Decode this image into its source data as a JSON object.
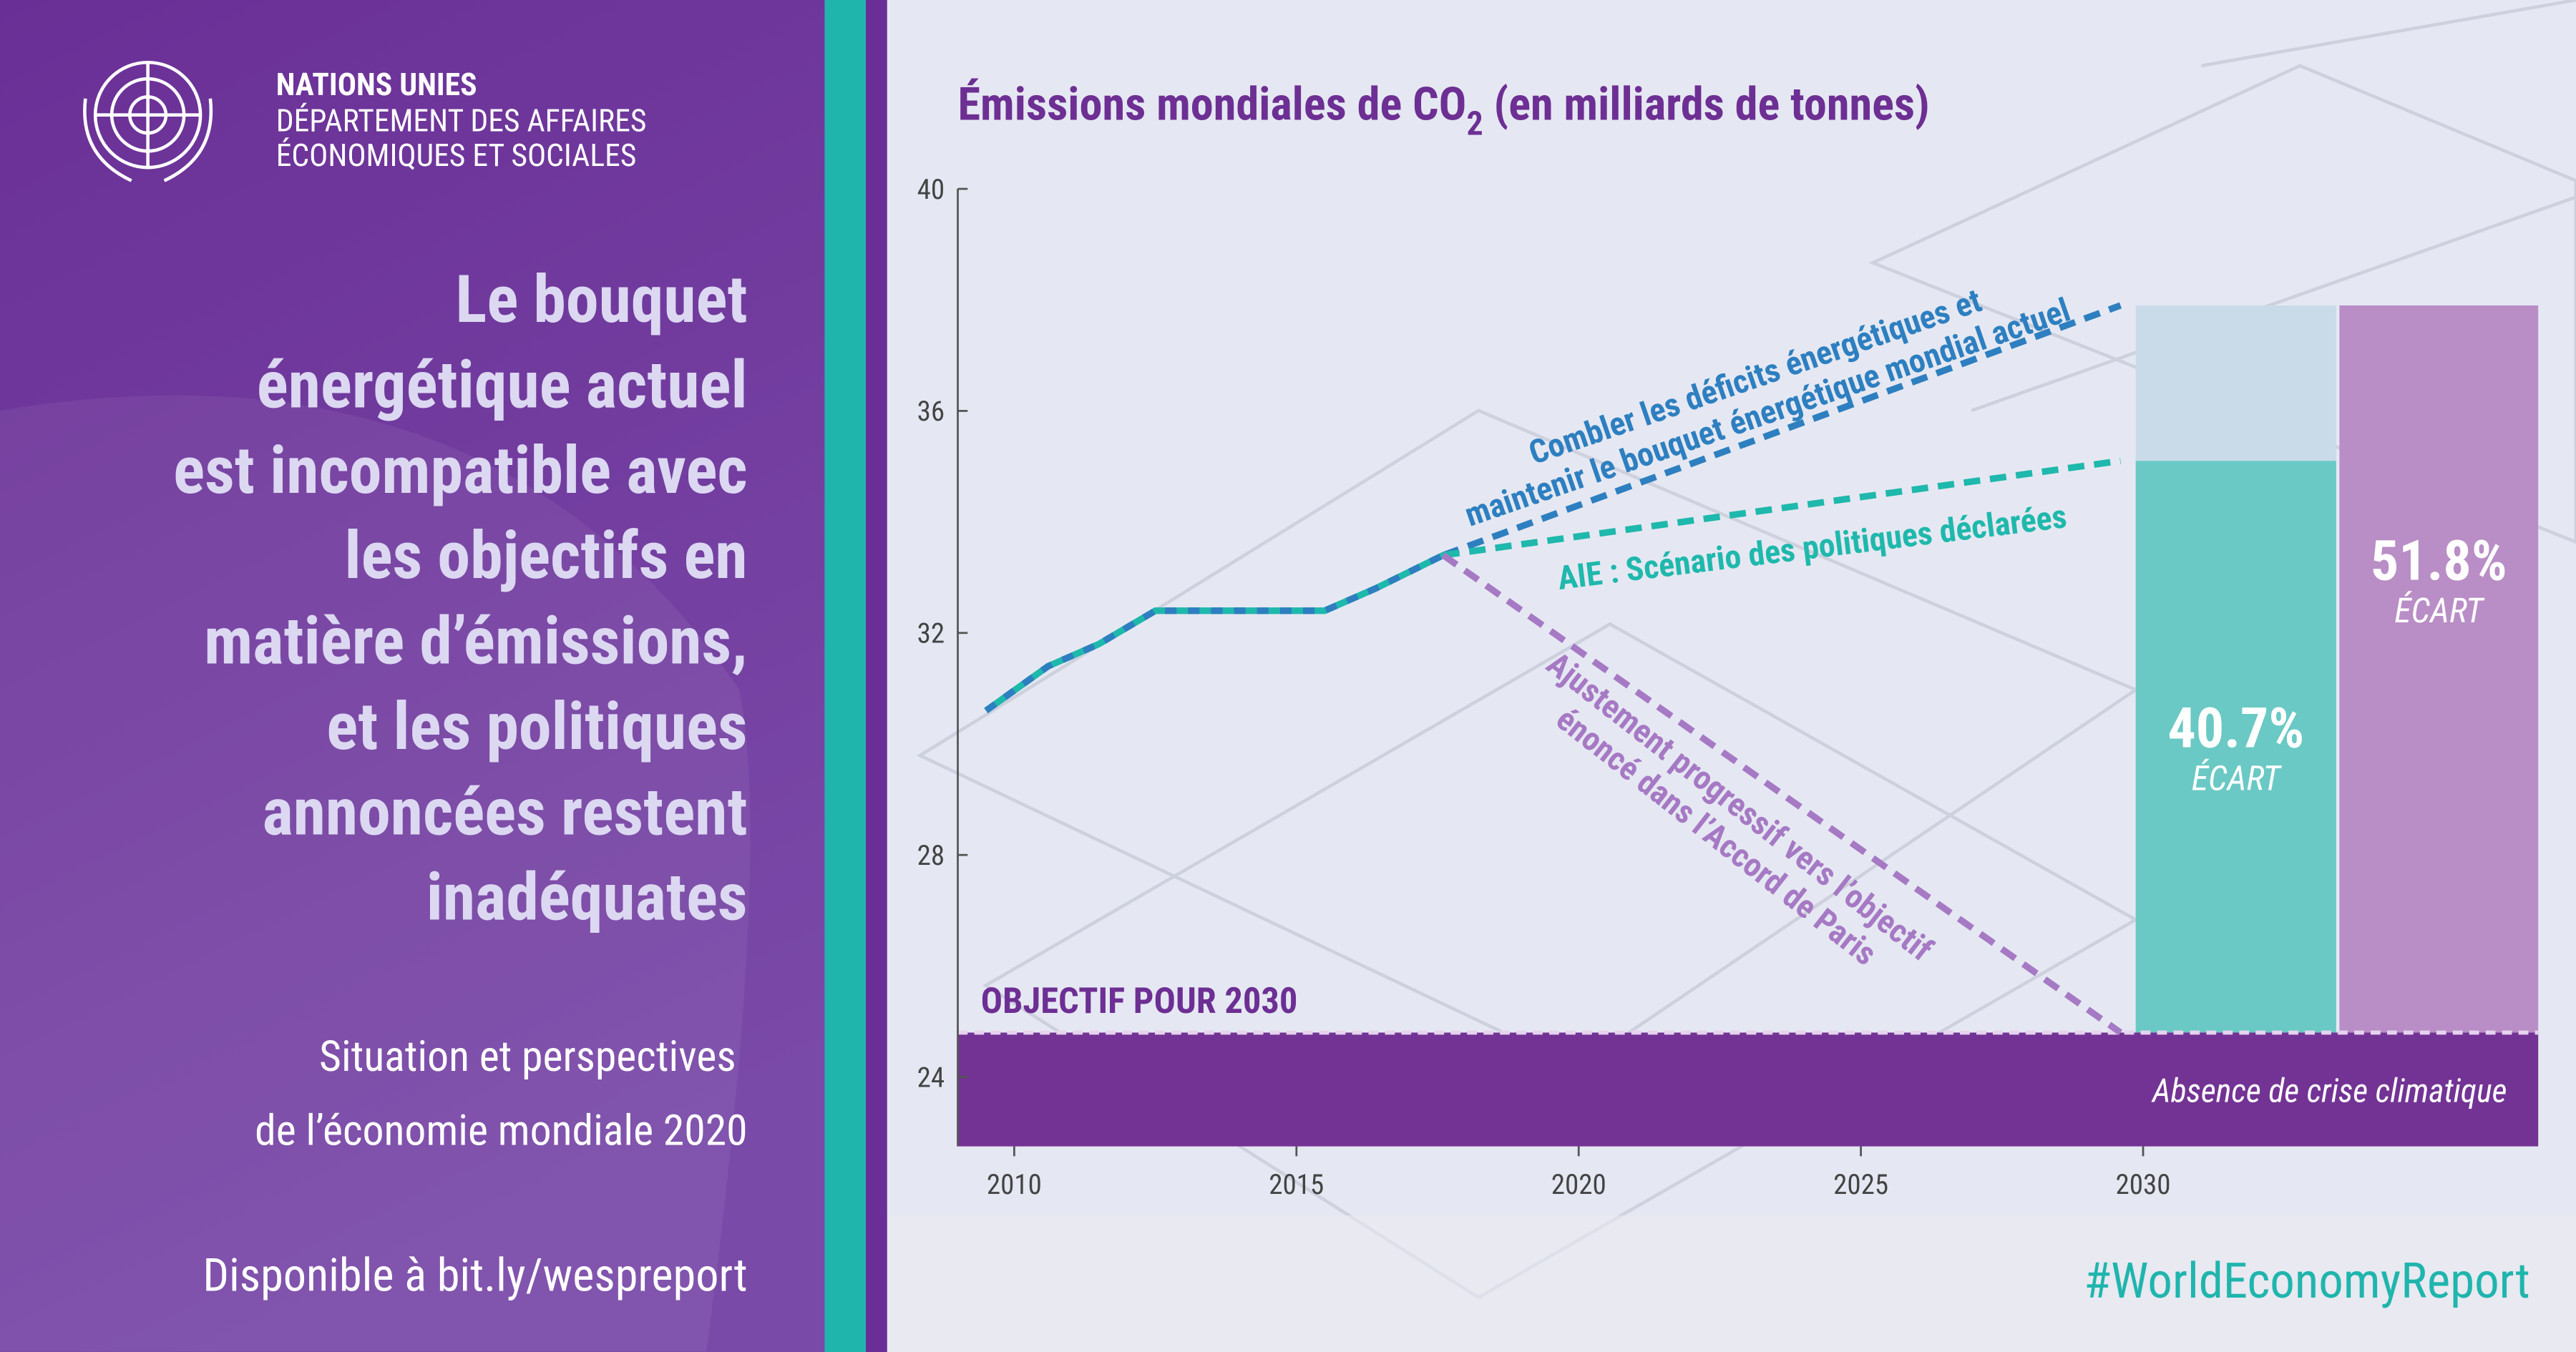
{
  "header": {
    "org": "NATIONS UNIES",
    "dept_lines": [
      "DÉPARTEMENT DES AFFAIRES",
      "ÉCONOMIQUES ET SOCIALES"
    ]
  },
  "headline_lines": [
    "Le bouquet",
    "énergétique actuel",
    "est incompatible avec",
    "les objectifs en",
    "matière d’émissions,",
    "et les politiques",
    "annoncées restent",
    "inadéquates"
  ],
  "report_lines": [
    "Situation et perspectives",
    "de l’économie mondiale 2020"
  ],
  "link": "Disponible à bit.ly/wespreport",
  "hashtag": "#WorldEconomyReport",
  "chart_data": {
    "type": "line",
    "title_parts": [
      "Émissions mondiales de CO",
      "2",
      " (en milliards de tonnes)"
    ],
    "xlim": [
      2009,
      2037
    ],
    "xticks": [
      2010,
      2015,
      2020,
      2025,
      2030
    ],
    "ylim": [
      22.75,
      40
    ],
    "yticks": [
      40,
      36,
      32,
      28,
      24
    ],
    "series": [
      {
        "color": "#2aa7b3",
        "x": [
          2009.5,
          2010.6,
          2011.5,
          2012.5,
          2015.5,
          2016.4,
          2017.6
        ],
        "values": [
          30.6,
          31.4,
          31.8,
          32.4,
          32.4,
          32.8,
          33.4
        ]
      },
      {
        "color": "#2d7fc0",
        "label_lines": [
          "Combler les déficits énergétiques et",
          "maintenir le bouquet énergétique mondial actuel"
        ],
        "x": [
          2017.6,
          2029.6
        ],
        "values": [
          33.4,
          37.9
        ]
      },
      {
        "color": "#1fb8ac",
        "label_lines": [
          "AIE : Scénario des politiques déclarées"
        ],
        "x": [
          2017.6,
          2029.6
        ],
        "values": [
          33.4,
          35.1
        ]
      },
      {
        "color": "#a679c4",
        "label_lines": [
          "Ajustement progressif vers l’objectif",
          "énoncé dans l’Accord de Paris"
        ],
        "x": [
          2017.6,
          2029.6
        ],
        "values": [
          33.4,
          24.8
        ]
      }
    ],
    "target": {
      "value": 24.8,
      "label": "OBJECTIF POUR 2030"
    },
    "band_label": "Absence de crise climatique",
    "gaps": {
      "tops": [
        35.1,
        37.9
      ],
      "values": [
        40.7,
        51.8
      ],
      "value_labels": [
        "40.7%",
        "51.8%"
      ],
      "captions": [
        "ÉCART",
        "ÉCART"
      ],
      "colors": [
        "#6ac9c4",
        "#b98dc6"
      ],
      "upper_color": "#c9dbe9"
    }
  }
}
